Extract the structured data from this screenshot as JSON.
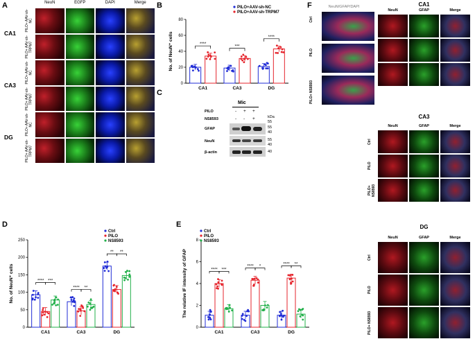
{
  "panel_labels": {
    "a": "A",
    "b": "B",
    "c": "C",
    "d": "D",
    "e": "E",
    "f": "F"
  },
  "panelA": {
    "columns": [
      "NeuN",
      "EGFP",
      "DAPI",
      "Merge"
    ],
    "regions": [
      "CA1",
      "CA3",
      "DG"
    ],
    "row_labels": [
      "PILO+ AAV-sh-NC",
      "PILO+ AAV-sh-TRPM7"
    ]
  },
  "panelC": {
    "header": "Mic",
    "pilo_label": "PILO",
    "ns_label": "NS8593",
    "pilo_signs": [
      "-",
      "+",
      "+"
    ],
    "ns_signs": [
      "-",
      "-",
      "+"
    ],
    "kda": "kDa",
    "blots": [
      {
        "name": "GFAP",
        "markers": [
          "55",
          "40"
        ]
      },
      {
        "name": "NeuN",
        "markers": [
          "55",
          "40"
        ]
      },
      {
        "name": "β-actin",
        "markers": [
          "40"
        ]
      }
    ],
    "marker_top": "55"
  },
  "panelF": {
    "legend_title": "NeuN/GFAP/DAPI",
    "columns": [
      "NeuN",
      "GFAP",
      "Merge"
    ],
    "regions": [
      "CA1",
      "CA3",
      "DG"
    ],
    "rows": [
      "Ctrl",
      "PILO",
      "PILO+ NS8593"
    ]
  },
  "colors": {
    "ctrl": "#1f2bd6",
    "pilo": "#e5232b",
    "ns": "#22b04a"
  },
  "chart_data": [
    {
      "id": "B",
      "type": "bar",
      "categories": [
        "CA1",
        "CA3",
        "DG"
      ],
      "ylabel": "No. of NeuN⁺ cells",
      "ylim": [
        0,
        80
      ],
      "yticks": [
        0,
        20,
        40,
        60,
        80
      ],
      "series": [
        {
          "name": "PILO+AAV-sh-NC",
          "values": [
            20,
            19,
            21
          ]
        },
        {
          "name": "PILO+AAV-sh-TRPM7",
          "values": [
            34,
            31,
            43
          ]
        }
      ],
      "significance": [
        "****",
        "***",
        "****"
      ]
    },
    {
      "id": "D",
      "type": "bar",
      "categories": [
        "CA1",
        "CA3",
        "DG"
      ],
      "ylabel": "No. of NeuN⁺ cells",
      "ylim": [
        0,
        250
      ],
      "yticks": [
        0,
        50,
        100,
        150,
        200,
        250
      ],
      "series": [
        {
          "name": "Ctrl",
          "values": [
            93,
            73,
            175
          ]
        },
        {
          "name": "PILO",
          "values": [
            45,
            47,
            108
          ]
        },
        {
          "name": "NS8593",
          "values": [
            78,
            65,
            148
          ]
        }
      ],
      "significance": [
        [
          "****",
          "***"
        ],
        [
          "****",
          "**"
        ],
        [
          "**",
          "**"
        ]
      ]
    },
    {
      "id": "E",
      "type": "bar",
      "categories": [
        "CA1",
        "CA3",
        "DG"
      ],
      "ylabel": "The relative IF intensity of GFAP",
      "ylim": [
        0,
        8
      ],
      "yticks": [
        0,
        2,
        4,
        6,
        8
      ],
      "series": [
        {
          "name": "Ctrl",
          "values": [
            1.1,
            1.1,
            1.1
          ]
        },
        {
          "name": "PILO",
          "values": [
            4.0,
            4.3,
            4.5
          ]
        },
        {
          "name": "NS8593",
          "values": [
            1.7,
            2.0,
            1.2
          ]
        }
      ],
      "significance": [
        [
          "****",
          "***"
        ],
        [
          "****",
          "*"
        ],
        [
          "****",
          "**"
        ]
      ]
    }
  ]
}
